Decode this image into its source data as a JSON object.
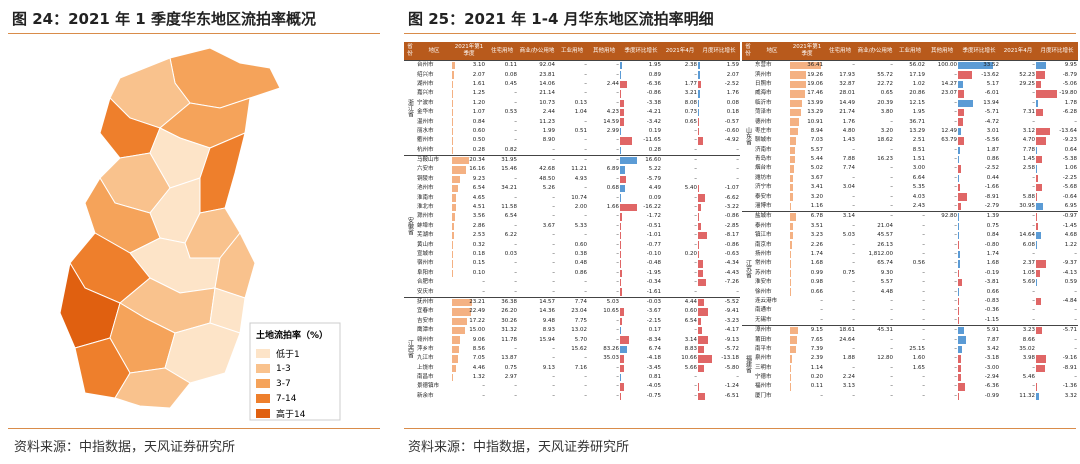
{
  "left": {
    "title": "图 24：2021 年 1 季度华东地区流拍率概况",
    "legend_title": "土地流拍率（%）",
    "legend": [
      "低于1",
      "1-3",
      "3-7",
      "7-14",
      "高于14"
    ],
    "source": "资料来源：中指数据，天风证券研究所"
  },
  "right": {
    "title": "图 25：2021 年 1-4 月华东地区流拍率明细",
    "source": "资料来源：中指数据，天风证券研究所",
    "header": [
      "省份",
      "地区",
      "2021年第1季度",
      "住宅用地",
      "商业/办公用地",
      "工业用地",
      "其他用地",
      "季度环比增长",
      "2021年4月",
      "月度环比增长"
    ],
    "tables": [
      {
        "groups": [
          {
            "province": "浙江省",
            "rows": [
              [
                "台州市",
                "3.10",
                "0.11",
                "92.04",
                "–",
                "–",
                "1.95",
                "2.38",
                "1.59"
              ],
              [
                "绍兴市",
                "2.07",
                "0.08",
                "23.81",
                "–",
                "–",
                "0.89",
                "–",
                "2.07"
              ],
              [
                "湖州市",
                "1.61",
                "0.45",
                "14.06",
                "–",
                "2.44",
                "-6.36",
                "1.77",
                "-2.52"
              ],
              [
                "嘉兴市",
                "1.25",
                "–",
                "21.14",
                "–",
                "–",
                "-0.86",
                "3.21",
                "1.76"
              ],
              [
                "宁波市",
                "1.20",
                "–",
                "10.73",
                "0.13",
                "–",
                "-3.38",
                "8.08",
                "0.08"
              ],
              [
                "金华市",
                "1.07",
                "0.53",
                "2.44",
                "1.04",
                "4.23",
                "-4.21",
                "0.73",
                "0.18"
              ],
              [
                "温州市",
                "0.84",
                "–",
                "11.23",
                "–",
                "14.59",
                "-3.42",
                "0.65",
                "-0.57"
              ],
              [
                "丽水市",
                "0.60",
                "–",
                "1.99",
                "0.51",
                "2.99",
                "0.19",
                "–",
                "-0.60"
              ],
              [
                "衢州市",
                "0.50",
                "–",
                "8.90",
                "–",
                "–",
                "-11.65",
                "–",
                "-4.92"
              ],
              [
                "杭州市",
                "0.28",
                "0.82",
                "–",
                "–",
                "–",
                "0.28",
                "–",
                "–"
              ]
            ]
          },
          {
            "province": "安徽省",
            "rows": [
              [
                "马鞍山市",
                "20.34",
                "31.95",
                "–",
                "–",
                "–",
                "16.60",
                "–",
                "–"
              ],
              [
                "六安市",
                "16.16",
                "15.46",
                "42.68",
                "11.21",
                "6.89",
                "5.22",
                "–",
                "–"
              ],
              [
                "铜陵市",
                "9.23",
                "–",
                "48.50",
                "4.93",
                "–",
                "-5.79",
                "–",
                "–"
              ],
              [
                "池州市",
                "6.54",
                "34.21",
                "5.26",
                "–",
                "0.68",
                "4.49",
                "5.40",
                "-1.07"
              ],
              [
                "淮南市",
                "4.65",
                "–",
                "–",
                "10.74",
                "–",
                "0.09",
                "–",
                "-6.62"
              ],
              [
                "淮北市",
                "4.51",
                "11.58",
                "–",
                "2.00",
                "1.66",
                "-16.22",
                "–",
                "-3.22"
              ],
              [
                "滁州市",
                "3.56",
                "6.54",
                "–",
                "–",
                "–",
                "-1.72",
                "–",
                "-0.86"
              ],
              [
                "蚌埠市",
                "2.86",
                "–",
                "3.67",
                "5.33",
                "–",
                "-0.51",
                "–",
                "-2.85"
              ],
              [
                "芜湖市",
                "2.53",
                "6.22",
                "–",
                "–",
                "–",
                "-1.01",
                "–",
                "-8.17"
              ],
              [
                "黄山市",
                "0.32",
                "–",
                "–",
                "0.60",
                "–",
                "-0.77",
                "–",
                "-0.86"
              ],
              [
                "宣城市",
                "0.18",
                "0.03",
                "–",
                "0.38",
                "–",
                "-0.10",
                "0.20",
                "-0.63"
              ],
              [
                "宿州市",
                "0.15",
                "–",
                "–",
                "0.48",
                "–",
                "-0.48",
                "–",
                "-4.34"
              ],
              [
                "阜阳市",
                "0.10",
                "–",
                "–",
                "0.86",
                "–",
                "-1.95",
                "–",
                "-4.43"
              ],
              [
                "合肥市",
                "–",
                "–",
                "–",
                "–",
                "–",
                "-0.34",
                "–",
                "-7.26"
              ],
              [
                "安庆市",
                "–",
                "–",
                "–",
                "–",
                "–",
                "-1.61",
                "–",
                "–"
              ]
            ]
          },
          {
            "province": "江西省",
            "rows": [
              [
                "抚州市",
                "23.21",
                "36.38",
                "14.57",
                "7.74",
                "5.03",
                "-0.03",
                "4.44",
                "-5.52"
              ],
              [
                "宜春市",
                "22.49",
                "26.20",
                "14.36",
                "23.04",
                "10.65",
                "-3.67",
                "0.60",
                "-9.41"
              ],
              [
                "吉安市",
                "17.22",
                "30.26",
                "9.48",
                "7.75",
                "–",
                "-2.15",
                "6.54",
                "-3.23"
              ],
              [
                "鹰潭市",
                "15.00",
                "31.32",
                "8.93",
                "13.02",
                "–",
                "0.17",
                "–",
                "-4.17"
              ],
              [
                "赣州市",
                "9.06",
                "11.78",
                "15.94",
                "5.70",
                "–",
                "-8.34",
                "3.14",
                "-9.13"
              ],
              [
                "萍乡市",
                "8.56",
                "–",
                "–",
                "15.62",
                "83.26",
                "6.74",
                "8.83",
                "-5.72"
              ],
              [
                "九江市",
                "7.05",
                "13.87",
                "–",
                "–",
                "35.03",
                "-4.18",
                "10.66",
                "-13.18"
              ],
              [
                "上饶市",
                "4.46",
                "0.75",
                "9.13",
                "7.16",
                "–",
                "-3.45",
                "5.66",
                "-5.80"
              ],
              [
                "南昌市",
                "1.32",
                "2.97",
                "–",
                "–",
                "–",
                "0.81",
                "–",
                "–"
              ],
              [
                "景德镇市",
                "–",
                "–",
                "–",
                "–",
                "–",
                "-4.05",
                "–",
                "-1.24"
              ],
              [
                "新余市",
                "–",
                "–",
                "–",
                "–",
                "–",
                "-0.75",
                "–",
                "-6.51"
              ]
            ]
          }
        ]
      },
      {
        "groups": [
          {
            "province": "山东省",
            "rows": [
              [
                "东营市",
                "36.41",
                "–",
                "–",
                "56.02",
                "100.00",
                "33.52",
                "–",
                "9.95"
              ],
              [
                "滨州市",
                "19.26",
                "17.93",
                "55.72",
                "17.19",
                "–",
                "-13.62",
                "52.23",
                "-8.79"
              ],
              [
                "日照市",
                "19.06",
                "32.87",
                "22.72",
                "1.02",
                "14.27",
                "5.17",
                "29.25",
                "-5.06"
              ],
              [
                "威海市",
                "17.46",
                "28.01",
                "0.65",
                "20.86",
                "23.07",
                "-6.01",
                "–",
                "-19.80"
              ],
              [
                "临沂市",
                "13.99",
                "14.49",
                "20.39",
                "12.15",
                "–",
                "13.94",
                "–",
                "1.78"
              ],
              [
                "菏泽市",
                "13.29",
                "21.74",
                "3.80",
                "1.95",
                "–",
                "-5.71",
                "7.31",
                "-6.28"
              ],
              [
                "德州市",
                "10.91",
                "1.76",
                "–",
                "36.71",
                "–",
                "-4.72",
                "–",
                "–"
              ],
              [
                "枣庄市",
                "8.94",
                "4.80",
                "3.20",
                "13.29",
                "12.49",
                "3.01",
                "3.12",
                "-13.64"
              ],
              [
                "聊城市",
                "7.03",
                "1.43",
                "18.62",
                "2.51",
                "63.79",
                "-5.56",
                "4.70",
                "-9.23"
              ],
              [
                "济南市",
                "5.57",
                "–",
                "–",
                "8.51",
                "–",
                "1.87",
                "7.78",
                "0.64"
              ],
              [
                "青岛市",
                "5.44",
                "7.88",
                "16.23",
                "1.51",
                "–",
                "0.86",
                "1.45",
                "-5.38"
              ],
              [
                "烟台市",
                "5.02",
                "7.74",
                "–",
                "3.00",
                "–",
                "-2.52",
                "2.58",
                "1.06"
              ],
              [
                "潍坊市",
                "3.67",
                "–",
                "–",
                "6.64",
                "–",
                "0.44",
                "–",
                "-2.25"
              ],
              [
                "济宁市",
                "3.41",
                "3.04",
                "–",
                "5.35",
                "–",
                "-1.66",
                "–",
                "-5.68"
              ],
              [
                "泰安市",
                "3.20",
                "–",
                "–",
                "4.03",
                "–",
                "-8.91",
                "5.88",
                "-0.64"
              ],
              [
                "淄博市",
                "1.16",
                "–",
                "–",
                "2.43",
                "–",
                "-2.79",
                "30.95",
                "6.95"
              ]
            ]
          },
          {
            "province": "江苏省",
            "rows": [
              [
                "盐城市",
                "6.78",
                "3.14",
                "–",
                "–",
                "92.80",
                "1.39",
                "–",
                "-0.97"
              ],
              [
                "泰州市",
                "3.51",
                "–",
                "21.04",
                "–",
                "–",
                "0.75",
                "–",
                "-1.45"
              ],
              [
                "镇江市",
                "3.23",
                "5.03",
                "45.57",
                "–",
                "–",
                "0.84",
                "14.64",
                "4.68"
              ],
              [
                "南京市",
                "2.26",
                "–",
                "26.13",
                "–",
                "–",
                "-0.80",
                "6.08",
                "1.22"
              ],
              [
                "扬州市",
                "1.74",
                "–",
                "1,812.00",
                "–",
                "–",
                "1.74",
                "–",
                "–"
              ],
              [
                "常州市",
                "1.68",
                "–",
                "65.74",
                "0.56",
                "–",
                "1.68",
                "2.37",
                "-9.37"
              ],
              [
                "苏州市",
                "0.99",
                "0.75",
                "9.30",
                "–",
                "–",
                "-0.19",
                "1.05",
                "-4.13"
              ],
              [
                "淮安市",
                "0.98",
                "–",
                "5.57",
                "–",
                "–",
                "-3.81",
                "5.69",
                "0.59"
              ],
              [
                "徐州市",
                "0.66",
                "–",
                "4.48",
                "–",
                "–",
                "0.66",
                "–",
                "–"
              ],
              [
                "连云港市",
                "–",
                "–",
                "–",
                "–",
                "–",
                "-0.83",
                "–",
                "-4.84"
              ],
              [
                "南通市",
                "–",
                "–",
                "–",
                "–",
                "–",
                "-0.36",
                "–",
                "–"
              ],
              [
                "无锡市",
                "–",
                "–",
                "–",
                "–",
                "–",
                "-1.15",
                "–",
                "–"
              ]
            ]
          },
          {
            "province": "福建省",
            "rows": [
              [
                "漳州市",
                "9.15",
                "18.61",
                "45.31",
                "–",
                "–",
                "5.91",
                "3.23",
                "-5.71"
              ],
              [
                "莆田市",
                "7.65",
                "24.64",
                "–",
                "–",
                "–",
                "7.87",
                "8.66",
                "–"
              ],
              [
                "南平市",
                "7.39",
                "–",
                "–",
                "25.15",
                "–",
                "3.42",
                "35.02",
                "–"
              ],
              [
                "泉州市",
                "2.39",
                "1.88",
                "12.80",
                "1.60",
                "–",
                "-3.18",
                "3.98",
                "-9.16"
              ],
              [
                "三明市",
                "1.14",
                "–",
                "–",
                "1.65",
                "–",
                "-3.00",
                "–",
                "-8.91"
              ],
              [
                "宁德市",
                "0.20",
                "2.24",
                "–",
                "–",
                "–",
                "-2.94",
                "5.46",
                "–"
              ],
              [
                "福州市",
                "0.11",
                "3.13",
                "–",
                "–",
                "–",
                "-6.36",
                "–",
                "-1.36"
              ],
              [
                "厦门市",
                "–",
                "–",
                "–",
                "–",
                "–",
                "-0.99",
                "11.32",
                "3.32"
              ]
            ]
          }
        ]
      }
    ]
  }
}
